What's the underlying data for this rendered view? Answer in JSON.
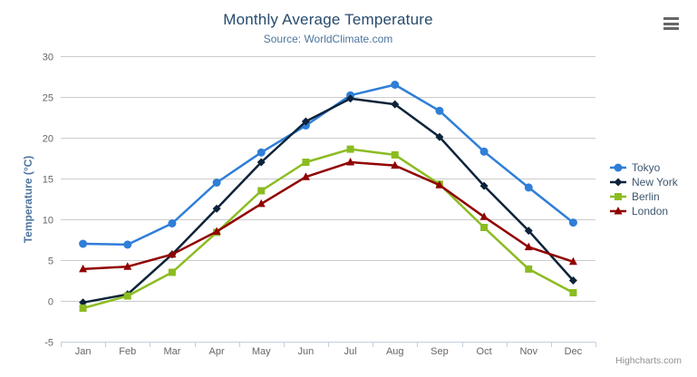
{
  "header": {
    "title": "Monthly Average Temperature",
    "subtitle": "Source: WorldClimate.com"
  },
  "export_menu": {
    "icon": "hamburger-icon"
  },
  "credits": {
    "label": "Highcharts.com"
  },
  "colors": {
    "title": "#274b6d",
    "subtitle": "#4d759e",
    "axis_title": "#4d759e",
    "axis_label": "#666666",
    "legend_text": "#3e576f",
    "grid_line": "#cccccc",
    "axis_line": "#c0d0e0",
    "credits": "#909090",
    "menu_icon": "#666666",
    "background": "#ffffff"
  },
  "chart_data": {
    "type": "line",
    "title": "Monthly Average Temperature",
    "subtitle": "Source: WorldClimate.com",
    "xlabel": "",
    "ylabel": "Temperature (°C)",
    "categories": [
      "Jan",
      "Feb",
      "Mar",
      "Apr",
      "May",
      "Jun",
      "Jul",
      "Aug",
      "Sep",
      "Oct",
      "Nov",
      "Dec"
    ],
    "series": [
      {
        "name": "Tokyo",
        "color": "#2f7ed8",
        "marker": "circle",
        "values": [
          7.0,
          6.9,
          9.5,
          14.5,
          18.2,
          21.5,
          25.2,
          26.5,
          23.3,
          18.3,
          13.9,
          9.6
        ]
      },
      {
        "name": "New York",
        "color": "#0d233a",
        "marker": "diamond",
        "values": [
          -0.2,
          0.8,
          5.7,
          11.3,
          17.0,
          22.0,
          24.8,
          24.1,
          20.1,
          14.1,
          8.6,
          2.5
        ]
      },
      {
        "name": "Berlin",
        "color": "#8bbc21",
        "marker": "square",
        "values": [
          -0.9,
          0.6,
          3.5,
          8.4,
          13.5,
          17.0,
          18.6,
          17.9,
          14.3,
          9.0,
          3.9,
          1.0
        ]
      },
      {
        "name": "London",
        "color": "#910000",
        "marker": "triangle",
        "values": [
          3.9,
          4.2,
          5.7,
          8.5,
          11.9,
          15.2,
          17.0,
          16.6,
          14.2,
          10.3,
          6.6,
          4.8
        ]
      }
    ],
    "ylim": [
      -5,
      30
    ],
    "yticks": [
      -5,
      0,
      5,
      10,
      15,
      20,
      25,
      30
    ],
    "grid": true,
    "legend_position": "right"
  }
}
